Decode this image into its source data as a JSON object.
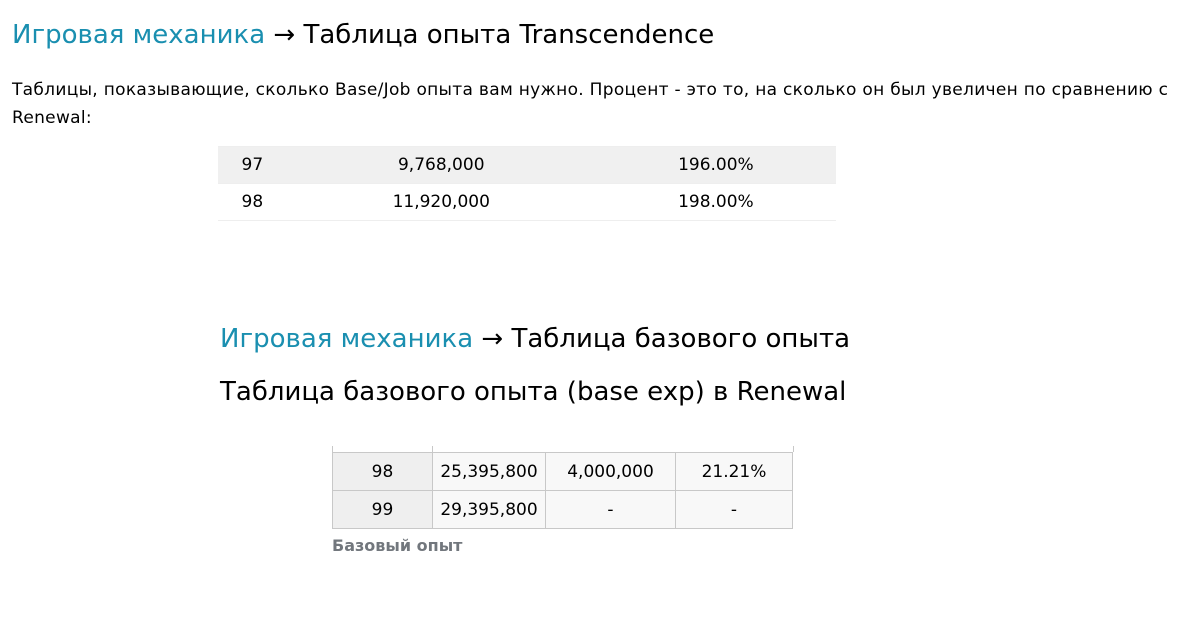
{
  "section1": {
    "breadcrumb": "Игровая механика",
    "arrow": "→",
    "title": "Таблица опыта Transcendence",
    "intro": "Таблицы, показывающие, сколько Base/Job опыта вам нужно. Процент - это то, на сколько он был увеличен по сравнению с Renewal:",
    "table": {
      "rows": [
        [
          "97",
          "9,768,000",
          "196.00%"
        ],
        [
          "98",
          "11,920,000",
          "198.00%"
        ]
      ]
    }
  },
  "section2": {
    "breadcrumb": "Игровая механика",
    "arrow": "→",
    "title": "Таблица базового опыта",
    "heading": "Таблица базового опыта (base exp) в Renewal",
    "table": {
      "rows": [
        [
          "98",
          "25,395,800",
          "4,000,000",
          "21.21%"
        ],
        [
          "99",
          "29,395,800",
          "-",
          "-"
        ]
      ]
    },
    "caption": "Базовый опыт"
  }
}
